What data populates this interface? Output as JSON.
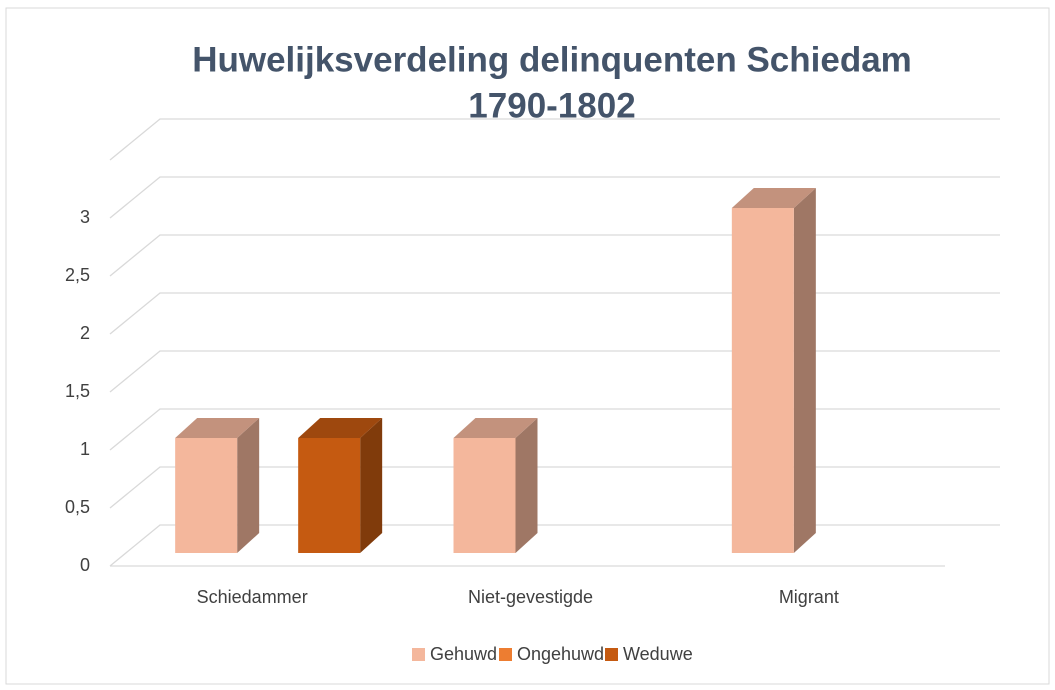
{
  "chart_data": {
    "type": "bar3d",
    "title": [
      "Huwelijksverdeling delinquenten Schiedam",
      "1790-1802"
    ],
    "categories": [
      "Schiedammer",
      "Niet-gevestigde",
      "Migrant"
    ],
    "series": [
      {
        "name": "Gehuwd",
        "color": "#f4b79c",
        "values": [
          1,
          1,
          3
        ]
      },
      {
        "name": "Ongehuwd",
        "color": "#ed7d31",
        "values": [
          null,
          null,
          null
        ]
      },
      {
        "name": "Weduwe",
        "color": "#c55a11",
        "values": [
          1,
          null,
          null
        ]
      }
    ],
    "ylim": [
      0,
      3.5
    ],
    "yticks": [
      0,
      {
        "value": 0.5,
        "label": "0,5"
      },
      1,
      {
        "value": 1.5,
        "label": "1,5"
      },
      2,
      {
        "value": 2.5,
        "label": "2,5"
      },
      3
    ],
    "grid": true,
    "legend": "bottom"
  }
}
